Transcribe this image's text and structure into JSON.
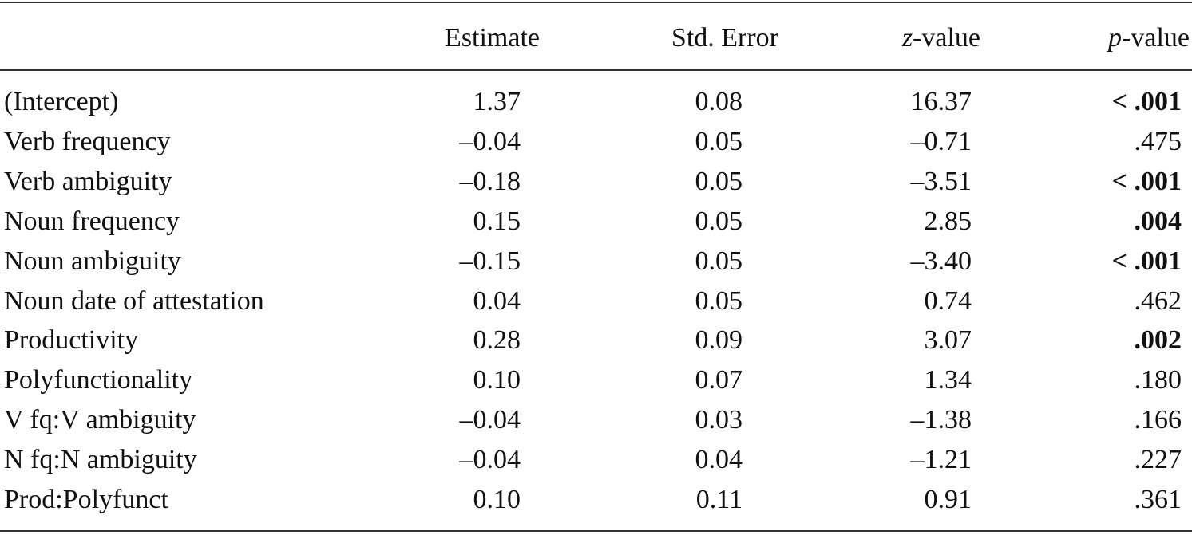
{
  "table": {
    "columns": [
      "Estimate",
      "Std. Error",
      "z-value",
      "p-value"
    ],
    "rows": [
      {
        "label": "(Intercept)",
        "cells": [
          "1.37",
          "0.08",
          "16.37",
          "< .001"
        ],
        "bold": true
      },
      {
        "label": "Verb frequency",
        "cells": [
          "–0.04",
          "0.05",
          "–0.71",
          ".475"
        ],
        "bold": false
      },
      {
        "label": "Verb ambiguity",
        "cells": [
          "–0.18",
          "0.05",
          "–3.51",
          "< .001"
        ],
        "bold": true
      },
      {
        "label": "Noun frequency",
        "cells": [
          "0.15",
          "0.05",
          "2.85",
          ".004"
        ],
        "bold": true
      },
      {
        "label": "Noun ambiguity",
        "cells": [
          "–0.15",
          "0.05",
          "–3.40",
          "< .001"
        ],
        "bold": true
      },
      {
        "label": "Noun date of attestation",
        "cells": [
          "0.04",
          "0.05",
          "0.74",
          ".462"
        ],
        "bold": false
      },
      {
        "label": "Productivity",
        "cells": [
          "0.28",
          "0.09",
          "3.07",
          ".002"
        ],
        "bold": true
      },
      {
        "label": "Polyfunctionality",
        "cells": [
          "0.10",
          "0.07",
          "1.34",
          ".180"
        ],
        "bold": false
      },
      {
        "label": "V fq:V ambiguity",
        "cells": [
          "–0.04",
          "0.03",
          "–1.38",
          ".166"
        ],
        "bold": false
      },
      {
        "label": "N fq:N ambiguity",
        "cells": [
          "–0.04",
          "0.04",
          "–1.21",
          ".227"
        ],
        "bold": false
      },
      {
        "label": "Prod:Polyfunct",
        "cells": [
          "0.10",
          "0.11",
          "0.91",
          ".361"
        ],
        "bold": false
      }
    ]
  }
}
